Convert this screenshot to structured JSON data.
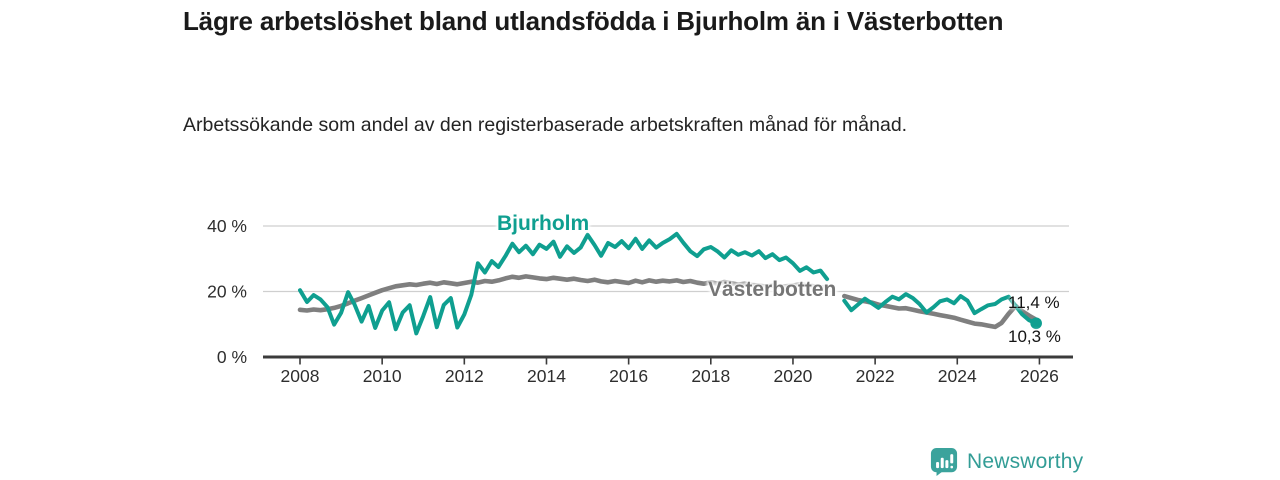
{
  "header": {
    "title": "Lägre arbetslöshet bland utlandsfödda i Bjurholm än i Västerbotten",
    "subtitle": "Arbetssökande som andel av den registerbaserade arbetskraften månad för månad."
  },
  "footer": {
    "brand": "Newsworthy"
  },
  "chart_data": {
    "type": "line",
    "title": "Lägre arbetslöshet bland utlandsfödda i Bjurholm än i Västerbotten",
    "subtitle": "Arbetssökande som andel av den registerbaserade arbetskraften månad för månad.",
    "unit": "%",
    "grid": "horizontal",
    "legend_position": "inline-labels",
    "x_range": [
      2007.1,
      2026.85
    ],
    "y_range": [
      0,
      45
    ],
    "x_ticks": [
      2008,
      2010,
      2012,
      2014,
      2016,
      2018,
      2020,
      2022,
      2024,
      2026
    ],
    "y_ticks": [
      {
        "value": 0,
        "label": "0 %"
      },
      {
        "value": 20,
        "label": "20 %"
      },
      {
        "value": 40,
        "label": "40 %"
      }
    ],
    "colors": {
      "accent_teal": "#0f9f90",
      "line_gray": "#7f7f7f",
      "grid": "#cfcfcf",
      "axis": "#3b3b3b"
    },
    "series": [
      {
        "name": "Bjurholm",
        "color": "#0f9f90",
        "final_value": 10.3,
        "end_label": "10,3 %",
        "end_dot": true,
        "segments": [
          [
            [
              2008.0,
              20.4
            ],
            [
              2008.17,
              16.8
            ],
            [
              2008.33,
              18.9
            ],
            [
              2008.5,
              17.6
            ],
            [
              2008.67,
              15.2
            ],
            [
              2008.83,
              9.9
            ],
            [
              2009.0,
              13.5
            ],
            [
              2009.17,
              19.8
            ],
            [
              2009.33,
              16.0
            ],
            [
              2009.5,
              10.8
            ],
            [
              2009.67,
              15.6
            ],
            [
              2009.83,
              8.9
            ],
            [
              2010.0,
              14.2
            ],
            [
              2010.17,
              16.7
            ],
            [
              2010.33,
              8.5
            ],
            [
              2010.5,
              13.6
            ],
            [
              2010.67,
              15.8
            ],
            [
              2010.83,
              7.2
            ],
            [
              2011.0,
              12.5
            ],
            [
              2011.17,
              18.3
            ],
            [
              2011.33,
              9.1
            ],
            [
              2011.5,
              15.9
            ],
            [
              2011.67,
              18.0
            ],
            [
              2011.83,
              9.0
            ],
            [
              2012.0,
              13.0
            ],
            [
              2012.17,
              19.0
            ],
            [
              2012.33,
              28.6
            ],
            [
              2012.5,
              25.8
            ],
            [
              2012.67,
              29.3
            ],
            [
              2012.83,
              27.5
            ],
            [
              2013.0,
              30.8
            ],
            [
              2013.17,
              34.6
            ],
            [
              2013.33,
              32.0
            ],
            [
              2013.5,
              34.0
            ],
            [
              2013.67,
              31.4
            ],
            [
              2013.83,
              34.3
            ],
            [
              2014.0,
              33.0
            ],
            [
              2014.17,
              35.2
            ],
            [
              2014.33,
              30.6
            ],
            [
              2014.5,
              33.8
            ],
            [
              2014.67,
              31.8
            ],
            [
              2014.83,
              33.4
            ],
            [
              2015.0,
              37.3
            ],
            [
              2015.17,
              34.2
            ],
            [
              2015.33,
              30.9
            ],
            [
              2015.5,
              34.8
            ],
            [
              2015.67,
              33.6
            ],
            [
              2015.83,
              35.4
            ],
            [
              2016.0,
              33.2
            ],
            [
              2016.17,
              36.1
            ],
            [
              2016.33,
              33.0
            ],
            [
              2016.5,
              35.6
            ],
            [
              2016.67,
              33.4
            ],
            [
              2016.83,
              34.8
            ],
            [
              2017.0,
              36.0
            ],
            [
              2017.17,
              37.6
            ],
            [
              2017.33,
              34.9
            ],
            [
              2017.5,
              32.3
            ],
            [
              2017.67,
              30.8
            ],
            [
              2017.83,
              32.9
            ],
            [
              2018.0,
              33.6
            ],
            [
              2018.17,
              32.2
            ],
            [
              2018.33,
              30.4
            ],
            [
              2018.5,
              32.6
            ],
            [
              2018.67,
              31.2
            ],
            [
              2018.83,
              32.0
            ],
            [
              2019.0,
              31.0
            ],
            [
              2019.17,
              32.3
            ],
            [
              2019.33,
              30.2
            ],
            [
              2019.5,
              31.4
            ],
            [
              2019.67,
              29.6
            ],
            [
              2019.83,
              30.4
            ],
            [
              2020.0,
              28.6
            ],
            [
              2020.17,
              26.3
            ],
            [
              2020.33,
              27.4
            ],
            [
              2020.5,
              25.8
            ],
            [
              2020.67,
              26.4
            ],
            [
              2020.83,
              23.8
            ]
          ],
          [
            [
              2021.25,
              17.2
            ],
            [
              2021.42,
              14.3
            ],
            [
              2021.58,
              16.0
            ],
            [
              2021.75,
              17.8
            ],
            [
              2021.92,
              16.4
            ],
            [
              2022.08,
              15.0
            ],
            [
              2022.25,
              16.8
            ],
            [
              2022.42,
              18.4
            ],
            [
              2022.58,
              17.6
            ],
            [
              2022.75,
              19.2
            ],
            [
              2022.92,
              18.0
            ],
            [
              2023.08,
              16.2
            ],
            [
              2023.25,
              13.6
            ],
            [
              2023.42,
              15.2
            ],
            [
              2023.58,
              17.0
            ],
            [
              2023.75,
              17.6
            ],
            [
              2023.92,
              16.4
            ],
            [
              2024.08,
              18.6
            ],
            [
              2024.25,
              17.2
            ],
            [
              2024.42,
              13.4
            ],
            [
              2024.58,
              14.6
            ],
            [
              2024.75,
              15.8
            ],
            [
              2024.92,
              16.2
            ],
            [
              2025.08,
              17.6
            ],
            [
              2025.25,
              18.4
            ],
            [
              2025.42,
              15.6
            ],
            [
              2025.58,
              13.0
            ],
            [
              2025.75,
              11.2
            ],
            [
              2025.92,
              10.3
            ]
          ]
        ]
      },
      {
        "name": "Västerbotten",
        "color": "#7f7f7f",
        "final_value": 11.4,
        "end_label": "11,4 %",
        "end_dot": false,
        "segments": [
          [
            [
              2008.0,
              14.4
            ],
            [
              2008.17,
              14.2
            ],
            [
              2008.33,
              14.5
            ],
            [
              2008.5,
              14.3
            ],
            [
              2008.67,
              14.6
            ],
            [
              2008.83,
              15.0
            ],
            [
              2009.0,
              15.6
            ],
            [
              2009.17,
              16.4
            ],
            [
              2009.33,
              17.2
            ],
            [
              2009.5,
              18.0
            ],
            [
              2009.67,
              18.8
            ],
            [
              2009.83,
              19.6
            ],
            [
              2010.0,
              20.4
            ],
            [
              2010.17,
              21.0
            ],
            [
              2010.33,
              21.6
            ],
            [
              2010.5,
              21.9
            ],
            [
              2010.67,
              22.2
            ],
            [
              2010.83,
              22.0
            ],
            [
              2011.0,
              22.4
            ],
            [
              2011.17,
              22.7
            ],
            [
              2011.33,
              22.3
            ],
            [
              2011.5,
              22.8
            ],
            [
              2011.67,
              22.5
            ],
            [
              2011.83,
              22.2
            ],
            [
              2012.0,
              22.6
            ],
            [
              2012.17,
              23.0
            ],
            [
              2012.33,
              22.7
            ],
            [
              2012.5,
              23.2
            ],
            [
              2012.67,
              23.0
            ],
            [
              2012.83,
              23.4
            ],
            [
              2013.0,
              24.0
            ],
            [
              2013.17,
              24.5
            ],
            [
              2013.33,
              24.2
            ],
            [
              2013.5,
              24.6
            ],
            [
              2013.67,
              24.3
            ],
            [
              2013.83,
              24.0
            ],
            [
              2014.0,
              23.8
            ],
            [
              2014.17,
              24.2
            ],
            [
              2014.33,
              23.9
            ],
            [
              2014.5,
              23.6
            ],
            [
              2014.67,
              23.9
            ],
            [
              2014.83,
              23.5
            ],
            [
              2015.0,
              23.2
            ],
            [
              2015.17,
              23.6
            ],
            [
              2015.33,
              23.1
            ],
            [
              2015.5,
              22.8
            ],
            [
              2015.67,
              23.2
            ],
            [
              2015.83,
              22.9
            ],
            [
              2016.0,
              22.6
            ],
            [
              2016.17,
              23.3
            ],
            [
              2016.33,
              22.8
            ],
            [
              2016.5,
              23.4
            ],
            [
              2016.67,
              23.0
            ],
            [
              2016.83,
              23.3
            ],
            [
              2017.0,
              23.1
            ],
            [
              2017.17,
              23.4
            ],
            [
              2017.33,
              22.9
            ],
            [
              2017.5,
              23.2
            ],
            [
              2017.67,
              22.7
            ],
            [
              2017.83,
              22.4
            ],
            [
              2018.0,
              22.8
            ],
            [
              2018.17,
              22.4
            ],
            [
              2018.33,
              22.9
            ],
            [
              2018.5,
              22.5
            ],
            [
              2018.67,
              22.1
            ],
            [
              2018.83,
              22.4
            ],
            [
              2019.0,
              22.0
            ],
            [
              2019.17,
              21.8
            ],
            [
              2019.33,
              21.5
            ],
            [
              2019.5,
              21.8
            ],
            [
              2019.67,
              21.4
            ],
            [
              2019.83,
              21.6
            ],
            [
              2020.0,
              21.8
            ],
            [
              2020.17,
              22.2
            ],
            [
              2020.33,
              21.9
            ],
            [
              2020.5,
              21.6
            ],
            [
              2020.67,
              21.3
            ],
            [
              2020.83,
              21.0
            ]
          ],
          [
            [
              2021.25,
              18.6
            ],
            [
              2021.42,
              18.0
            ],
            [
              2021.58,
              17.4
            ],
            [
              2021.75,
              17.0
            ],
            [
              2021.92,
              16.6
            ],
            [
              2022.08,
              16.0
            ],
            [
              2022.25,
              15.6
            ],
            [
              2022.42,
              15.2
            ],
            [
              2022.58,
              14.8
            ],
            [
              2022.75,
              14.9
            ],
            [
              2022.92,
              14.4
            ],
            [
              2023.08,
              14.0
            ],
            [
              2023.25,
              13.6
            ],
            [
              2023.42,
              13.2
            ],
            [
              2023.58,
              12.8
            ],
            [
              2023.75,
              12.4
            ],
            [
              2023.92,
              12.0
            ],
            [
              2024.08,
              11.4
            ],
            [
              2024.25,
              10.8
            ],
            [
              2024.42,
              10.2
            ],
            [
              2024.58,
              10.0
            ],
            [
              2024.75,
              9.6
            ],
            [
              2024.92,
              9.2
            ],
            [
              2025.08,
              10.4
            ],
            [
              2025.25,
              13.2
            ],
            [
              2025.42,
              15.6
            ],
            [
              2025.58,
              14.0
            ],
            [
              2025.75,
              12.6
            ],
            [
              2025.92,
              11.4
            ]
          ]
        ]
      }
    ]
  }
}
